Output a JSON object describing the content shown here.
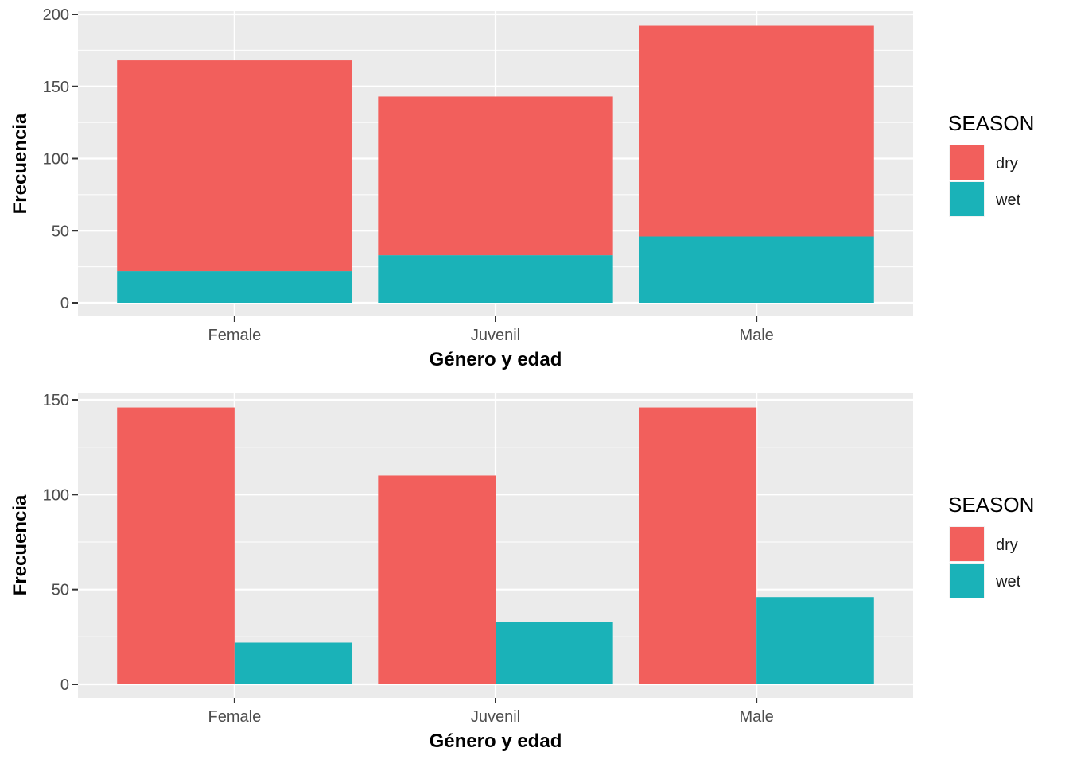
{
  "chart_data": [
    {
      "type": "bar",
      "mode": "stacked",
      "categories": [
        "Female",
        "Juvenil",
        "Male"
      ],
      "series": [
        {
          "name": "dry",
          "values": [
            146,
            110,
            146
          ],
          "color": "#F25F5C"
        },
        {
          "name": "wet",
          "values": [
            22,
            33,
            46
          ],
          "color": "#1AB2B8"
        }
      ],
      "xlabel": "Género y edad",
      "ylabel": "Frecuencia",
      "ylim": [
        0,
        200
      ],
      "yticks": [
        "0",
        "50",
        "100",
        "150",
        "200"
      ],
      "legend": {
        "title": "SEASON",
        "position": "right"
      },
      "grid": true
    },
    {
      "type": "bar",
      "mode": "dodged",
      "categories": [
        "Female",
        "Juvenil",
        "Male"
      ],
      "series": [
        {
          "name": "dry",
          "values": [
            146,
            110,
            146
          ],
          "color": "#F25F5C"
        },
        {
          "name": "wet",
          "values": [
            22,
            33,
            46
          ],
          "color": "#1AB2B8"
        }
      ],
      "xlabel": "Género y edad",
      "ylabel": "Frecuencia",
      "ylim": [
        0,
        150
      ],
      "yticks": [
        "0",
        "50",
        "100",
        "150"
      ],
      "legend": {
        "title": "SEASON",
        "position": "right"
      },
      "grid": true
    }
  ]
}
